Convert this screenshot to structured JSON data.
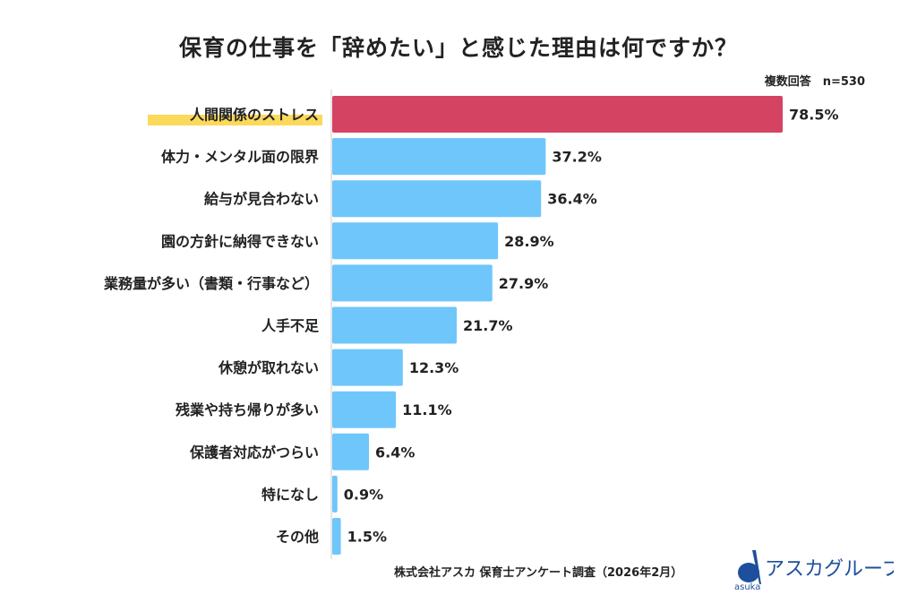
{
  "chart_data": {
    "type": "bar",
    "orientation": "horizontal",
    "title": "保育の仕事を「辞めたい」と感じた理由は何ですか？",
    "note": "複数回答　n=530",
    "categories": [
      "人間関係のストレス",
      "体力・メンタル面の限界",
      "給与が見合わない",
      "園の方針に納得できない",
      "業務量が多い（書類・行事など）",
      "人手不足",
      "休憩が取れない",
      "残業や持ち帰りが多い",
      "保護者対応がつらい",
      "特になし",
      "その他"
    ],
    "values": [
      78.5,
      37.2,
      36.4,
      28.9,
      27.9,
      21.7,
      12.3,
      11.1,
      6.4,
      0.9,
      1.5
    ],
    "value_labels": [
      "78.5%",
      "37.2%",
      "36.4%",
      "28.9%",
      "27.9%",
      "21.7%",
      "12.3%",
      "11.1%",
      "6.4%",
      "0.9%",
      "1.5%"
    ],
    "unit": "%",
    "highlight_index": 0,
    "colors": {
      "highlight": "#d44462",
      "bar": "#6ec6fb",
      "label_highlight": "#fbd95a"
    },
    "grid": false
  },
  "footer": {
    "source": "株式会社アスカ 保育士アンケート調査（2026年2月）",
    "logo_text": "アスカグループ",
    "logo_sub": "asuka"
  }
}
